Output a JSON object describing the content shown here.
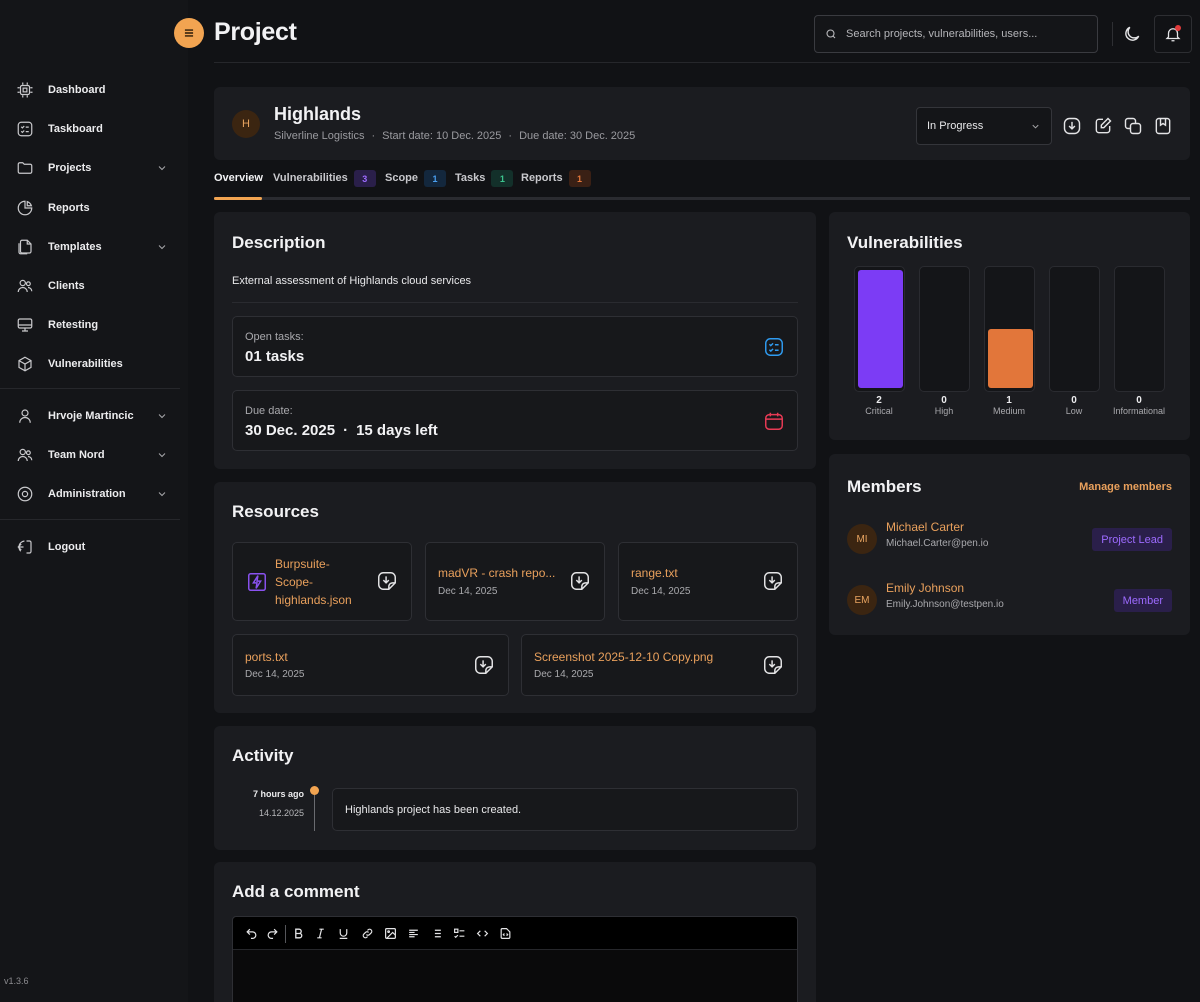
{
  "header": {
    "title": "Project",
    "search_placeholder": "Search projects, vulnerabilities, users..."
  },
  "sidebar": {
    "items": [
      {
        "label": "Dashboard",
        "icon": "cpu-icon"
      },
      {
        "label": "Taskboard",
        "icon": "checklist-icon"
      },
      {
        "label": "Projects",
        "icon": "folder-icon",
        "expandable": true
      },
      {
        "label": "Reports",
        "icon": "pie-chart-icon"
      },
      {
        "label": "Templates",
        "icon": "files-icon",
        "expandable": true
      },
      {
        "label": "Clients",
        "icon": "users-icon"
      },
      {
        "label": "Retesting",
        "icon": "monitor-icon"
      },
      {
        "label": "Vulnerabilities",
        "icon": "cube-icon"
      }
    ],
    "user": "Hrvoje Martincic",
    "team": "Team Nord",
    "admin": "Administration",
    "logout": "Logout",
    "version": "v1.3.6"
  },
  "project": {
    "initial": "H",
    "name": "Highlands",
    "client": "Silverline Logistics",
    "start": "Start date: 10 Dec. 2025",
    "due": "Due date: 30 Dec. 2025",
    "status": "In Progress"
  },
  "tabs": [
    {
      "label": "Overview"
    },
    {
      "label": "Vulnerabilities",
      "count": "3"
    },
    {
      "label": "Scope",
      "count": "1"
    },
    {
      "label": "Tasks",
      "count": "1"
    },
    {
      "label": "Reports",
      "count": "1"
    }
  ],
  "description": {
    "title": "Description",
    "text": "External assessment of Highlands cloud services",
    "open_tasks_label": "Open tasks:",
    "open_tasks_value": "01 tasks",
    "due_label": "Due date:",
    "due_date": "30 Dec. 2025",
    "due_sep": "·",
    "days_left": "15 days left"
  },
  "resources": {
    "title": "Resources",
    "files": [
      {
        "name": "Burpsuite-Scope-highlands.json",
        "name_lines": [
          "Burpsuite-",
          "Scope-",
          "highlands.json"
        ],
        "date": ""
      },
      {
        "name": "madVR - crash repo...",
        "date": "Dec 14, 2025"
      },
      {
        "name": "range.txt",
        "date": "Dec 14, 2025"
      },
      {
        "name": "ports.txt",
        "date": "Dec 14, 2025"
      },
      {
        "name": "Screenshot 2025-12-10 Copy.png",
        "date": "Dec 14, 2025"
      }
    ]
  },
  "activity": {
    "title": "Activity",
    "time": "7 hours ago",
    "date": "14.12.2025",
    "text": "Highlands project has been created."
  },
  "comment": {
    "title": "Add a comment"
  },
  "vulnerabilities": {
    "title": "Vulnerabilities",
    "colors": {
      "Critical": "#7c3cf5",
      "Medium": "#e2763a"
    },
    "levels": [
      {
        "label": "Critical",
        "count": "2",
        "fill_fraction": 1.0
      },
      {
        "label": "High",
        "count": "0",
        "fill_fraction": 0
      },
      {
        "label": "Medium",
        "count": "1",
        "fill_fraction": 0.5
      },
      {
        "label": "Low",
        "count": "0",
        "fill_fraction": 0
      },
      {
        "label": "Informational",
        "count": "0",
        "fill_fraction": 0
      }
    ]
  },
  "members": {
    "title": "Members",
    "manage_label": "Manage members",
    "list": [
      {
        "initials": "MI",
        "name": "Michael Carter",
        "email": "Michael.Carter@pen.io",
        "role": "Project Lead"
      },
      {
        "initials": "EM",
        "name": "Emily Johnson",
        "email": "Emily.Johnson@testpen.io",
        "role": "Member"
      }
    ]
  }
}
